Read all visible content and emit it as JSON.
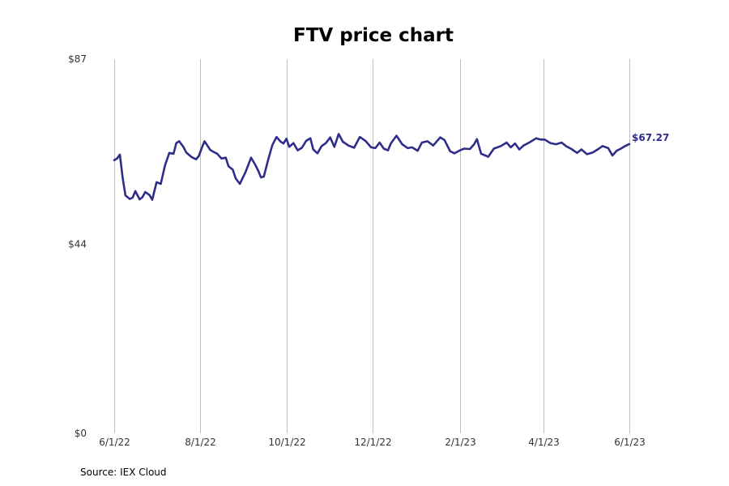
{
  "chart_data": {
    "type": "line",
    "title": "FTV price chart",
    "xlabel": "",
    "ylabel": "",
    "source": "Source: IEX Cloud",
    "ylim": [
      0,
      87
    ],
    "xlim": [
      "2022-06-01",
      "2023-06-01"
    ],
    "y_ticks": [
      {
        "value": 0,
        "label": "$0"
      },
      {
        "value": 44,
        "label": "$44"
      },
      {
        "value": 87,
        "label": "$87"
      }
    ],
    "x_ticks": [
      {
        "date": "2022-06-01",
        "label": "6/1/22"
      },
      {
        "date": "2022-08-01",
        "label": "8/1/22"
      },
      {
        "date": "2022-10-01",
        "label": "10/1/22"
      },
      {
        "date": "2022-12-01",
        "label": "12/1/22"
      },
      {
        "date": "2023-02-01",
        "label": "2/1/23"
      },
      {
        "date": "2023-04-01",
        "label": "4/1/23"
      },
      {
        "date": "2023-06-01",
        "label": "6/1/23"
      }
    ],
    "grid": "vertical",
    "line_color": "#2e2e8a",
    "last_value_label": "$67.27",
    "series": [
      {
        "x": [
          "2022-06-01",
          "2022-06-03",
          "2022-06-05",
          "2022-06-07",
          "2022-06-09",
          "2022-06-12",
          "2022-06-14",
          "2022-06-16",
          "2022-06-19",
          "2022-06-21",
          "2022-06-23",
          "2022-06-26",
          "2022-06-28",
          "2022-07-01",
          "2022-07-04",
          "2022-07-07",
          "2022-07-10",
          "2022-07-13",
          "2022-07-15",
          "2022-07-17",
          "2022-07-20",
          "2022-07-22",
          "2022-07-26",
          "2022-07-29",
          "2022-07-31",
          "2022-08-02",
          "2022-08-04",
          "2022-08-08",
          "2022-08-10",
          "2022-08-13",
          "2022-08-16",
          "2022-08-19",
          "2022-08-21",
          "2022-08-24",
          "2022-08-26",
          "2022-08-29",
          "2022-09-02",
          "2022-09-06",
          "2022-09-09",
          "2022-09-11",
          "2022-09-13",
          "2022-09-15",
          "2022-09-18",
          "2022-09-21",
          "2022-09-24",
          "2022-09-27",
          "2022-09-29",
          "2022-10-01",
          "2022-10-03",
          "2022-10-06",
          "2022-10-09",
          "2022-10-12",
          "2022-10-15",
          "2022-10-18",
          "2022-10-20",
          "2022-10-23",
          "2022-10-26",
          "2022-10-29",
          "2022-11-01",
          "2022-11-04",
          "2022-11-07",
          "2022-11-10",
          "2022-11-14",
          "2022-11-18",
          "2022-11-22",
          "2022-11-26",
          "2022-11-30",
          "2022-12-03",
          "2022-12-06",
          "2022-12-09",
          "2022-12-12",
          "2022-12-14",
          "2022-12-18",
          "2022-12-22",
          "2022-12-26",
          "2022-12-29",
          "2023-01-02",
          "2023-01-05",
          "2023-01-09",
          "2023-01-13",
          "2023-01-18",
          "2023-01-21",
          "2023-01-25",
          "2023-01-28",
          "2023-02-01",
          "2023-02-04",
          "2023-02-08",
          "2023-02-11",
          "2023-02-13",
          "2023-02-16",
          "2023-02-21",
          "2023-02-25",
          "2023-03-02",
          "2023-03-06",
          "2023-03-09",
          "2023-03-12",
          "2023-03-15",
          "2023-03-18",
          "2023-03-22",
          "2023-03-27",
          "2023-03-30",
          "2023-04-02",
          "2023-04-06",
          "2023-04-10",
          "2023-04-14",
          "2023-04-17",
          "2023-04-21",
          "2023-04-25",
          "2023-04-28",
          "2023-05-02",
          "2023-05-06",
          "2023-05-10",
          "2023-05-13",
          "2023-05-17",
          "2023-05-20",
          "2023-05-23",
          "2023-05-26",
          "2023-05-29",
          "2023-06-01"
        ],
        "y": [
          63.5,
          63.9,
          64.8,
          59.3,
          55.3,
          54.5,
          54.8,
          56.3,
          54.4,
          54.9,
          56.1,
          55.4,
          54.3,
          58.4,
          58.0,
          62.3,
          65.2,
          65.0,
          67.5,
          67.9,
          66.6,
          65.3,
          64.2,
          63.7,
          64.5,
          66.3,
          67.9,
          65.9,
          65.5,
          65.0,
          63.9,
          64.1,
          62.1,
          61.3,
          59.3,
          58.0,
          60.7,
          64.1,
          62.4,
          61.1,
          59.5,
          59.7,
          63.5,
          67.0,
          68.9,
          67.8,
          67.4,
          68.5,
          66.6,
          67.5,
          65.8,
          66.4,
          68.0,
          68.6,
          66.0,
          65.1,
          66.8,
          67.5,
          68.8,
          66.6,
          69.6,
          67.8,
          66.9,
          66.4,
          68.9,
          68.0,
          66.5,
          66.3,
          67.6,
          66.2,
          65.8,
          67.4,
          69.2,
          67.2,
          66.3,
          66.5,
          65.7,
          67.6,
          67.9,
          66.9,
          68.8,
          68.2,
          65.6,
          65.1,
          65.8,
          66.2,
          66.1,
          67.2,
          68.4,
          65.0,
          64.3,
          66.2,
          66.8,
          67.6,
          66.5,
          67.4,
          66.0,
          66.9,
          67.6,
          68.6,
          68.3,
          68.3,
          67.5,
          67.2,
          67.6,
          66.8,
          66.1,
          65.2,
          66.0,
          64.9,
          65.3,
          66.1,
          66.8,
          66.3,
          64.6,
          65.7,
          66.2,
          66.8,
          67.27
        ]
      }
    ]
  }
}
